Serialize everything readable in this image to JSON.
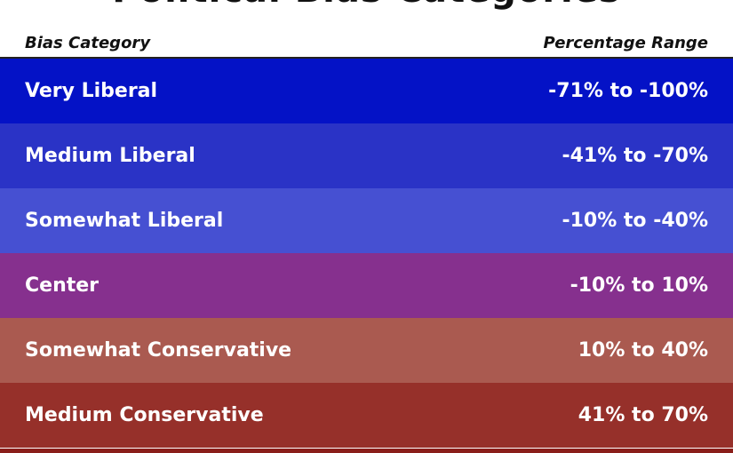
{
  "header": {
    "title": "Political Bias Categories"
  },
  "table": {
    "columns": [
      "Bias Category",
      "Percentage Range"
    ],
    "rows": [
      [
        "Very Liberal",
        "-71% to -100%"
      ],
      [
        "Medium Liberal",
        "-41% to -70%"
      ],
      [
        "Somewhat Liberal",
        "-10% to -40%"
      ],
      [
        "Center",
        "-10% to 10%"
      ],
      [
        "Somewhat Conservative",
        "10% to 40%"
      ],
      [
        "Medium Conservative",
        "41% to 70%"
      ]
    ]
  }
}
